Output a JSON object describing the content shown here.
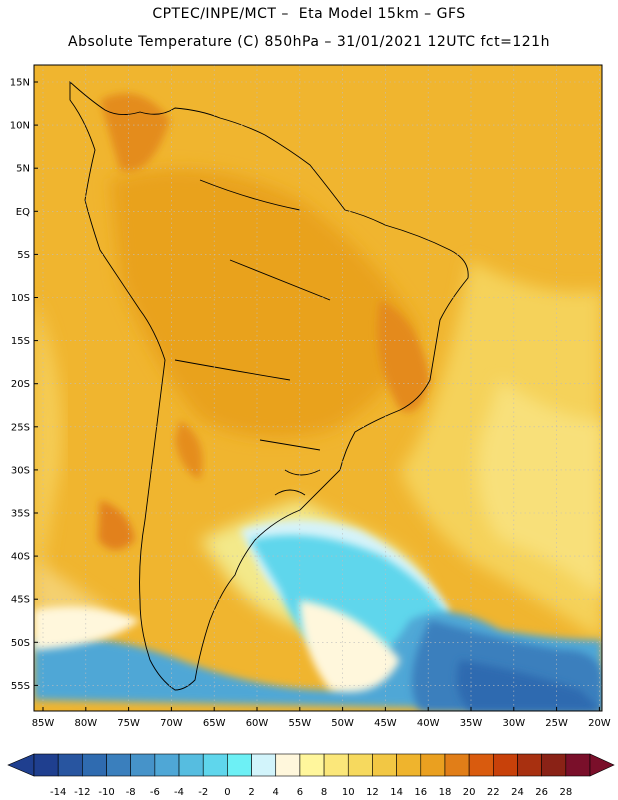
{
  "header": {
    "line1": "CPTEC/INPE/MCT –  Eta Model 15km – GFS",
    "line2": "Absolute Temperature (C) 850hPa – 31/01/2021 12UTC fct=121h"
  },
  "map": {
    "lat_labels": [
      "15N",
      "10N",
      "5N",
      "EQ",
      "5S",
      "10S",
      "15S",
      "20S",
      "25S",
      "30S",
      "35S",
      "40S",
      "45S",
      "50S",
      "55S"
    ],
    "lon_labels": [
      "85W",
      "80W",
      "75W",
      "70W",
      "65W",
      "60W",
      "55W",
      "50W",
      "45W",
      "40W",
      "35W",
      "30W",
      "25W",
      "20W"
    ]
  },
  "colorbar": {
    "labels": [
      "-14",
      "-12",
      "-10",
      "-8",
      "-6",
      "-4",
      "-2",
      "0",
      "2",
      "4",
      "6",
      "8",
      "10",
      "12",
      "14",
      "16",
      "18",
      "20",
      "22",
      "24",
      "26",
      "28"
    ],
    "colors": [
      "#1f3f8f",
      "#2855a0",
      "#2f6bb0",
      "#3a7fbd",
      "#4693c9",
      "#4fa7d6",
      "#56bde0",
      "#5fd6ec",
      "#6df0f5",
      "#d2f4fb",
      "#fff7dc",
      "#fff69c",
      "#fbe77a",
      "#f6d95e",
      "#f2c744",
      "#efb42d",
      "#eaa020",
      "#e17e18",
      "#d95b0e",
      "#c8410a",
      "#a83010",
      "#8a2216",
      "#7a0f2a"
    ]
  }
}
